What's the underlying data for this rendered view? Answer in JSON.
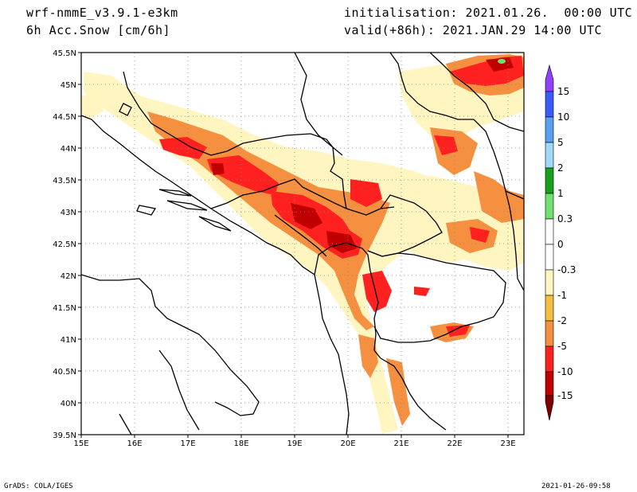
{
  "header": {
    "model": "wrf-nmmE_v3.9.1-e3km",
    "variable": "6h Acc.Snow [cm/6h]",
    "init": "initialisation: 2021.01.26.  00:00 UTC",
    "valid": "valid(+86h): 2021.JAN.29 14:00 UTC"
  },
  "footer": {
    "left": "GrADS: COLA/IGES",
    "right": "2021-01-26-09:58"
  },
  "map": {
    "lon_labels": [
      "15E",
      "16E",
      "17E",
      "18E",
      "19E",
      "20E",
      "21E",
      "22E",
      "23E"
    ],
    "lat_labels": [
      "45.5N",
      "45N",
      "44.5N",
      "44N",
      "43.5N",
      "43N",
      "42.5N",
      "42N",
      "41.5N",
      "41N",
      "40.5N",
      "40N",
      "39.5N"
    ],
    "lon_range": [
      15,
      23.3
    ],
    "lat_range": [
      39.5,
      45.5
    ]
  },
  "colorbar": {
    "labels": [
      "15",
      "10",
      "5",
      "2",
      "1",
      "0.3",
      "0",
      "-0.3",
      "-1",
      "-2",
      "-5",
      "-10",
      "-15"
    ],
    "colors": [
      "#6a2cff",
      "#3a5cff",
      "#5aa0f0",
      "#a0d8f8",
      "#18a018",
      "#70e070",
      "#ffffff",
      "#ffffff",
      "#fff5c0",
      "#f5c040",
      "#f59040",
      "#ff2020",
      "#c00000",
      "#800000"
    ]
  }
}
